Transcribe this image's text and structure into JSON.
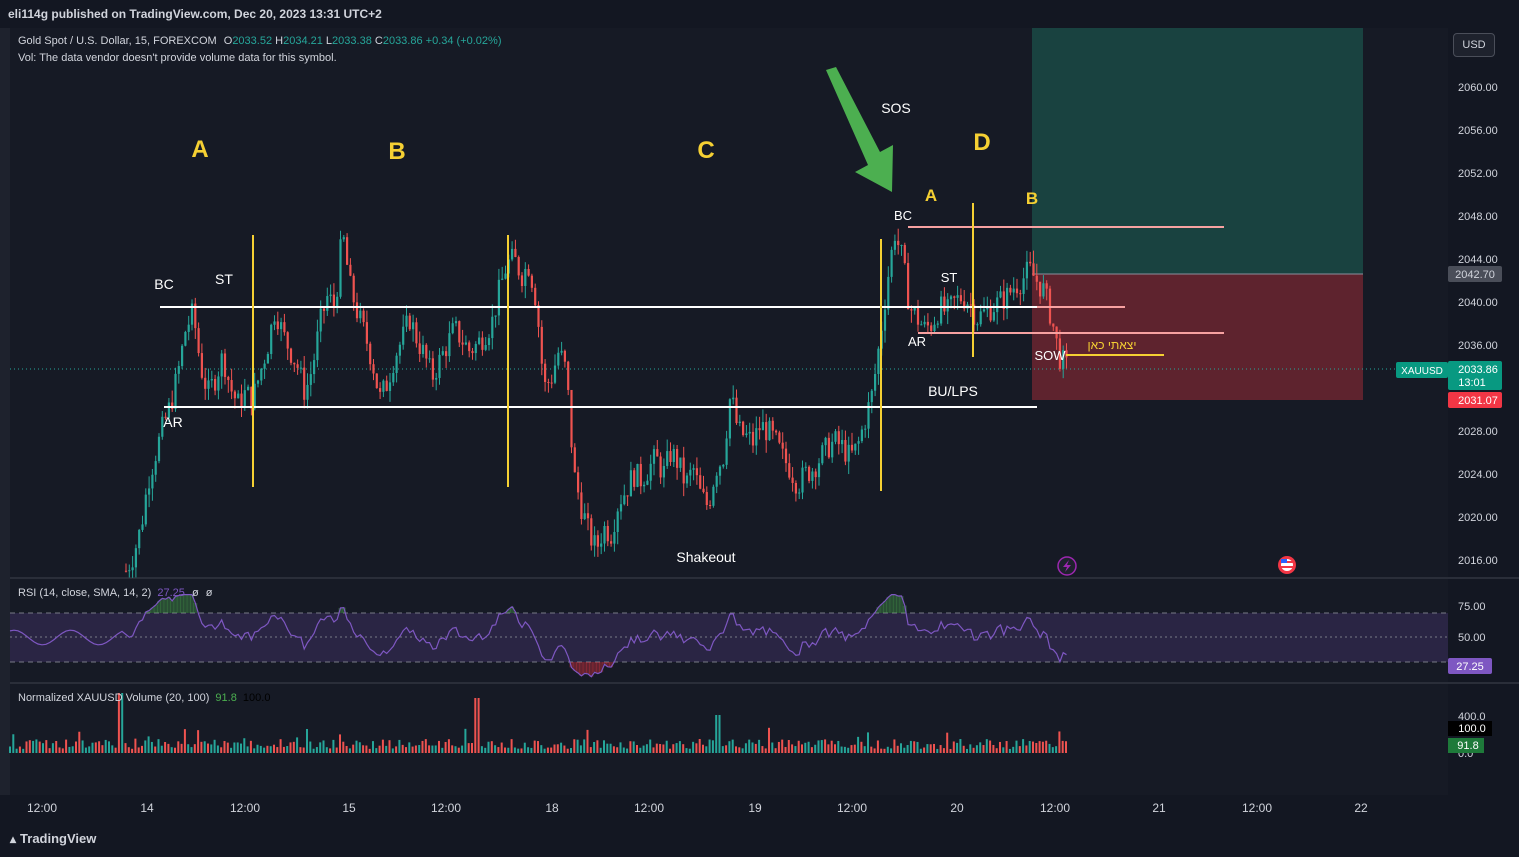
{
  "header": {
    "publisher": "eli114g published on TradingView.com, Dec 20, 2023 13:31 UTC+2"
  },
  "legend": {
    "symbol": "Gold Spot / U.S. Dollar, 15, FOREXCOM",
    "o_label": "O",
    "o_value": "2033.52",
    "h_label": "H",
    "h_value": "2034.21",
    "l_label": "L",
    "l_value": "2033.38",
    "c_label": "C",
    "c_value": "2033.86",
    "change": "+0.34 (+0.02%)",
    "vol_note": "Vol: The data vendor doesn't provide volume data for this symbol.",
    "rsi_label": "RSI (14, close, SMA, 14, 2)",
    "rsi_value": "27.25",
    "rsi_extra1": "ø",
    "rsi_extra2": "ø",
    "volume_label": "Normalized XAUUSD Volume (20, 100)",
    "volume_value": "91.8",
    "volume_value2": "100.0"
  },
  "currency_button": "USD",
  "price_axis": {
    "ticks": [
      "2060.00",
      "2056.00",
      "2052.00",
      "2048.00",
      "2044.00",
      "2040.00",
      "2036.00",
      "2028.00",
      "2024.00",
      "2020.00",
      "2016.00"
    ],
    "tag_upper": "2042.70",
    "tag_symbol": "XAUUSD",
    "tag_current": "2033.86",
    "tag_timer": "13:01",
    "tag_lower": "2031.07"
  },
  "rsi_axis": {
    "ticks": [
      "75.00",
      "50.00"
    ],
    "current": "27.25"
  },
  "volume_axis": {
    "tick": "400.0",
    "tag_max": "100.0",
    "tag_current": "91.8",
    "tick_partial": "0.0"
  },
  "time_axis": [
    "12:00",
    "14",
    "12:00",
    "15",
    "12:00",
    "18",
    "12:00",
    "19",
    "12:00",
    "20",
    "12:00",
    "21",
    "12:00",
    "22"
  ],
  "annotations": {
    "phase_a": "A",
    "phase_b": "B",
    "phase_c": "C",
    "phase_d": "D",
    "sub_a": "A",
    "sub_b": "B",
    "sos": "SOS",
    "bc_left": "BC",
    "st_left": "ST",
    "ar_left": "AR",
    "bc_right": "BC",
    "st_right": "ST",
    "ar_right": "AR",
    "bu_lps": "BU/LPS",
    "shakeout": "Shakeout",
    "sow": "SOW",
    "exit_note": "יצאתי כאן"
  },
  "footer": {
    "brand": "TradingView"
  },
  "colors": {
    "bull": "#26a69a",
    "bear": "#ef5350",
    "accent_yellow": "#f5d033",
    "arrow_green": "#4caf50",
    "rsi_line": "#7e57c2",
    "tag_red": "#f23645"
  },
  "chart_data": {
    "type": "candlestick",
    "symbol": "XAUUSD",
    "timeframe": "15",
    "x_ticks": [
      "12:00",
      "14",
      "12:00",
      "15",
      "12:00",
      "18",
      "12:00",
      "19",
      "12:00",
      "20",
      "12:00",
      "21",
      "12:00",
      "22"
    ],
    "ylim": [
      2014,
      2064
    ],
    "close_path": [
      2015.0,
      2016.5,
      2019.0,
      2023.5,
      2026.0,
      2028.5,
      2030.5,
      2033.5,
      2037.5,
      2039.0,
      2034.0,
      2031.5,
      2033.0,
      2035.0,
      2032.0,
      2030.5,
      2031.5,
      2031.0,
      2033.5,
      2036.0,
      2039.5,
      2037.0,
      2035.5,
      2034.0,
      2031.5,
      2034.0,
      2038.0,
      2040.5,
      2039.5,
      2046.5,
      2041.5,
      2039.0,
      2037.0,
      2034.5,
      2031.0,
      2032.5,
      2035.0,
      2036.5,
      2038.5,
      2036.5,
      2035.0,
      2033.0,
      2034.5,
      2036.0,
      2037.5,
      2036.5,
      2035.5,
      2036.0,
      2037.0,
      2038.0,
      2041.0,
      2043.5,
      2044.0,
      2042.5,
      2043.5,
      2040.0,
      2032.0,
      2033.0,
      2035.5,
      2033.5,
      2024.0,
      2021.0,
      2018.5,
      2017.0,
      2019.0,
      2018.5,
      2021.5,
      2022.5,
      2024.0,
      2023.5,
      2024.5,
      2025.5,
      2024.0,
      2026.0,
      2025.0,
      2023.0,
      2024.5,
      2022.0,
      2021.0,
      2024.5,
      2025.5,
      2031.5,
      2028.0,
      2027.5,
      2027.0,
      2028.5,
      2028.0,
      2027.0,
      2025.5,
      2024.5,
      2023.0,
      2024.0,
      2024.5,
      2025.5,
      2026.5,
      2027.0,
      2026.5,
      2025.5,
      2026.5,
      2029.0,
      2031.5,
      2036.5,
      2042.0,
      2046.5,
      2044.0,
      2039.5,
      2038.5,
      2037.5,
      2038.0,
      2039.5,
      2039.0,
      2040.0,
      2040.5,
      2040.0,
      2038.5,
      2039.0,
      2039.5,
      2040.0,
      2040.5,
      2041.5,
      2042.0,
      2043.0,
      2042.0,
      2041.0,
      2038.5,
      2035.0,
      2033.86
    ],
    "horizontal_levels": [
      {
        "label": "upper range (white)",
        "value": 2039.5
      },
      {
        "label": "lower range (white)",
        "value": 2030.2
      },
      {
        "label": "BC level (pink)",
        "value": 2047.0
      },
      {
        "label": "middle (pink)",
        "value": 2039.5
      },
      {
        "label": "AR level (pink)",
        "value": 2037.0
      },
      {
        "label": "exit (yellow)",
        "value": 2034.4
      }
    ],
    "rsi": {
      "current": 27.25,
      "overbought": 70,
      "oversold": 30
    },
    "volume_normalized": {
      "current": 91.8,
      "max": 100.0
    },
    "position_box": {
      "entry": 2042.7,
      "stop": 2031.07
    }
  }
}
